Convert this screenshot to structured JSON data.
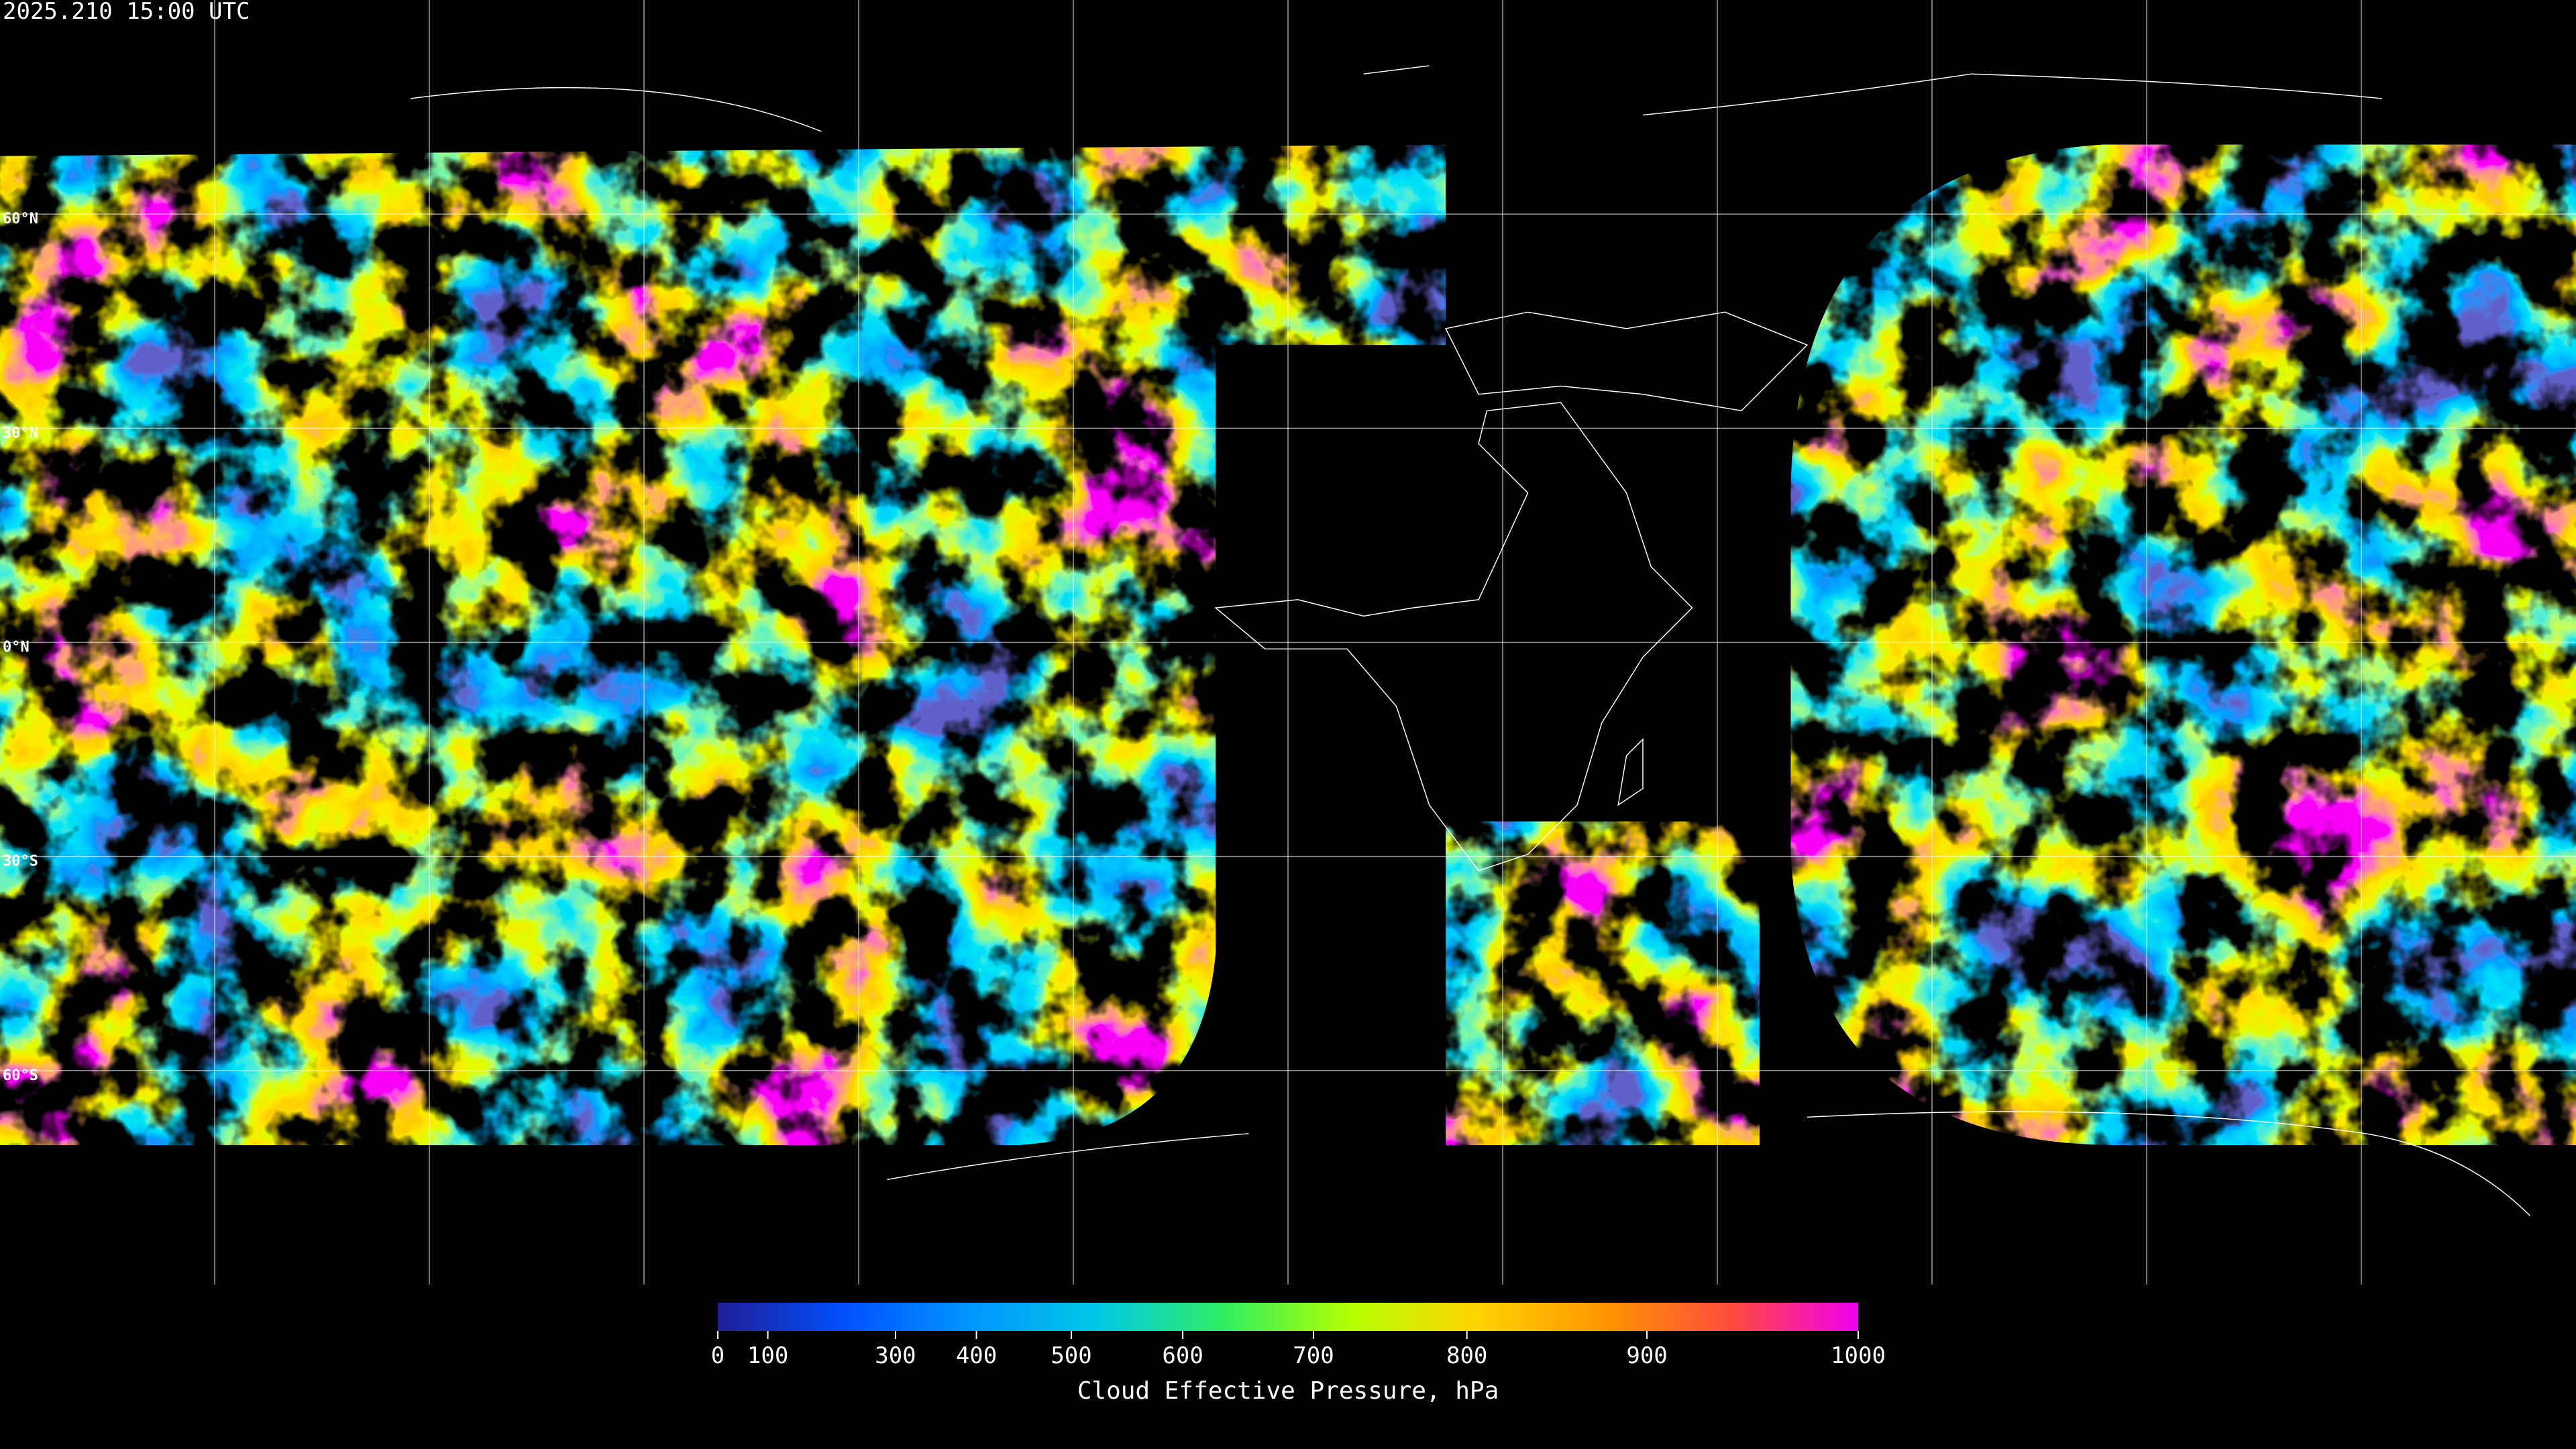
{
  "header": {
    "title": "2025.210 15:00 UTC"
  },
  "map": {
    "lat_labels": [
      "60°N",
      "30°N",
      "0°N",
      "30°S",
      "60°S"
    ]
  },
  "colorbar": {
    "type": "colorbar",
    "label": "Cloud Effective Pressure, hPa",
    "clim": [
      0,
      1000
    ],
    "ticks": [
      0,
      100,
      300,
      400,
      500,
      600,
      700,
      800,
      900,
      1000
    ],
    "colors": [
      "#1e1e96",
      "#0050ff",
      "#0096ff",
      "#00c8e6",
      "#30ee60",
      "#b4ff00",
      "#ffd200",
      "#ff9600",
      "#ff4a3c",
      "#f000f0"
    ]
  }
}
